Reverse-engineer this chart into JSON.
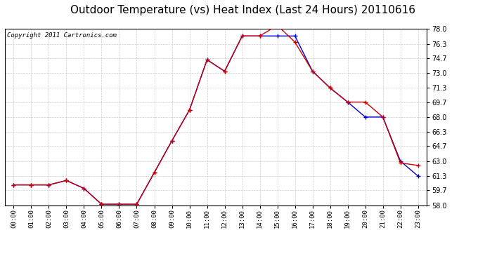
{
  "title": "Outdoor Temperature (vs) Heat Index (Last 24 Hours) 20110616",
  "copyright": "Copyright 2011 Cartronics.com",
  "hours": [
    "00:00",
    "01:00",
    "02:00",
    "03:00",
    "04:00",
    "05:00",
    "06:00",
    "07:00",
    "08:00",
    "09:00",
    "10:00",
    "11:00",
    "12:00",
    "13:00",
    "14:00",
    "15:00",
    "16:00",
    "17:00",
    "18:00",
    "19:00",
    "20:00",
    "21:00",
    "22:00",
    "23:00"
  ],
  "temp": [
    60.3,
    60.3,
    60.3,
    60.8,
    59.9,
    58.1,
    58.1,
    58.1,
    61.7,
    65.3,
    68.8,
    74.5,
    73.2,
    77.2,
    77.2,
    78.4,
    76.5,
    73.2,
    71.3,
    69.7,
    69.7,
    68.0,
    62.8,
    62.5
  ],
  "heat_index": [
    60.3,
    60.3,
    60.3,
    60.8,
    59.9,
    58.1,
    58.1,
    58.1,
    61.7,
    65.3,
    68.8,
    74.5,
    73.2,
    77.2,
    77.2,
    77.2,
    77.2,
    73.2,
    71.3,
    69.7,
    68.0,
    68.0,
    63.0,
    61.3
  ],
  "temp_color": "#cc0000",
  "heat_index_color": "#0000cc",
  "ylim_min": 58.0,
  "ylim_max": 78.0,
  "yticks": [
    58.0,
    59.7,
    61.3,
    63.0,
    64.7,
    66.3,
    68.0,
    69.7,
    71.3,
    73.0,
    74.7,
    76.3,
    78.0
  ],
  "bg_color": "#ffffff",
  "plot_bg_color": "#ffffff",
  "grid_color": "#cccccc",
  "title_fontsize": 11,
  "copyright_fontsize": 6.5
}
